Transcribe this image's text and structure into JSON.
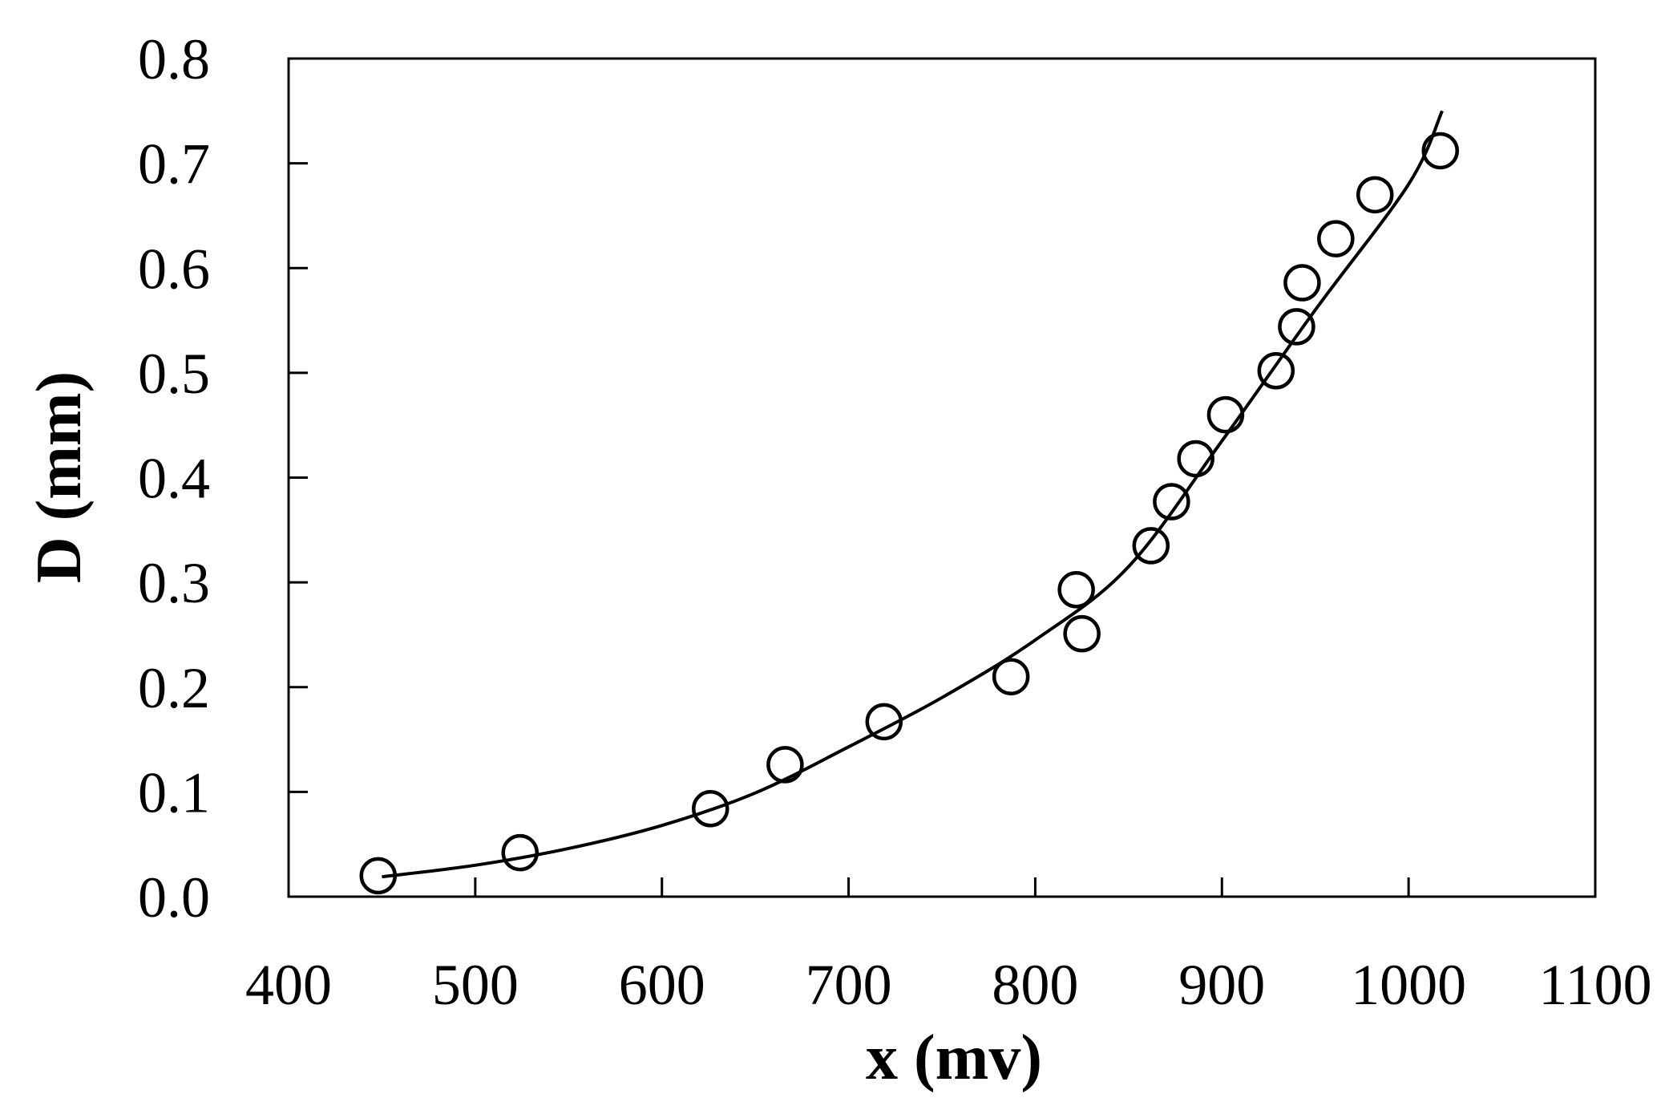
{
  "chart_data": {
    "type": "scatter",
    "title": "",
    "xlabel": "x (mv)",
    "ylabel": "D (mm)",
    "xlim": [
      400,
      1100
    ],
    "ylim": [
      0.0,
      0.8
    ],
    "x_ticks": [
      400,
      500,
      600,
      700,
      800,
      900,
      1000,
      1100
    ],
    "x_tick_labels": [
      "400",
      "500",
      "600",
      "700",
      "800",
      "900",
      "1000",
      "1100"
    ],
    "y_ticks": [
      0.0,
      0.1,
      0.2,
      0.3,
      0.4,
      0.5,
      0.6,
      0.7,
      0.8
    ],
    "y_tick_labels": [
      "0.0",
      "0.1",
      "0.2",
      "0.3",
      "0.4",
      "0.5",
      "0.6",
      "0.7",
      "0.8"
    ],
    "grid": false,
    "legend": "none",
    "series": [
      {
        "kind": "points",
        "marker": "open-circle",
        "color": "#000000",
        "points": [
          {
            "x": 448,
            "y": 0.02
          },
          {
            "x": 524,
            "y": 0.042
          },
          {
            "x": 626,
            "y": 0.084
          },
          {
            "x": 666,
            "y": 0.126
          },
          {
            "x": 719,
            "y": 0.167
          },
          {
            "x": 787,
            "y": 0.21
          },
          {
            "x": 822,
            "y": 0.293
          },
          {
            "x": 825,
            "y": 0.251
          },
          {
            "x": 862,
            "y": 0.335
          },
          {
            "x": 873,
            "y": 0.377
          },
          {
            "x": 886,
            "y": 0.418
          },
          {
            "x": 902,
            "y": 0.46
          },
          {
            "x": 929,
            "y": 0.502
          },
          {
            "x": 940,
            "y": 0.544
          },
          {
            "x": 943,
            "y": 0.586
          },
          {
            "x": 961,
            "y": 0.628
          },
          {
            "x": 982,
            "y": 0.67
          },
          {
            "x": 1017,
            "y": 0.712
          }
        ]
      },
      {
        "kind": "curve",
        "color": "#000000",
        "points": [
          {
            "x": 450,
            "y": 0.019
          },
          {
            "x": 500,
            "y": 0.03
          },
          {
            "x": 550,
            "y": 0.046
          },
          {
            "x": 600,
            "y": 0.068
          },
          {
            "x": 650,
            "y": 0.099
          },
          {
            "x": 700,
            "y": 0.143
          },
          {
            "x": 750,
            "y": 0.19
          },
          {
            "x": 800,
            "y": 0.245
          },
          {
            "x": 850,
            "y": 0.315
          },
          {
            "x": 900,
            "y": 0.435
          },
          {
            "x": 950,
            "y": 0.56
          },
          {
            "x": 1000,
            "y": 0.68
          },
          {
            "x": 1018,
            "y": 0.75
          }
        ]
      }
    ]
  }
}
